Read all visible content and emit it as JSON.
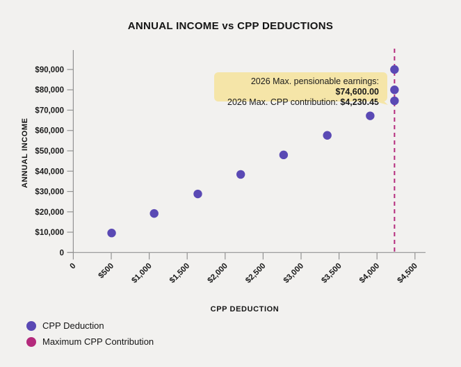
{
  "colors": {
    "background": "#f2f1ef",
    "point": "#5a49b4",
    "max_line": "#b42a7c",
    "annotation_bg": "#f5e5a8",
    "axis": "#929292",
    "text": "#1a1a1a"
  },
  "chart_data": {
    "type": "scatter",
    "title": "ANNUAL INCOME vs CPP DEDUCTIONS",
    "xlabel": "CPP DEDUCTION",
    "ylabel": "ANNUAL INCOME",
    "x_tick_values": [
      0,
      500,
      1000,
      1500,
      2000,
      2500,
      3000,
      3500,
      4000,
      4500
    ],
    "x_tick_labels": [
      "0",
      "$500",
      "$1,000",
      "$1,500",
      "$2,000",
      "$2,500",
      "$3,000",
      "$3,500",
      "$4,000",
      "$4,500"
    ],
    "y_tick_values": [
      0,
      10000,
      20000,
      30000,
      40000,
      50000,
      60000,
      70000,
      80000,
      90000
    ],
    "y_tick_labels": [
      "0",
      "$10,000",
      "$20,000",
      "$30,000",
      "$40,000",
      "$50,000",
      "$60,000",
      "$70,000",
      "$80,000",
      "$90,000"
    ],
    "xlim": [
      0,
      4640
    ],
    "ylim": [
      0,
      99500
    ],
    "grid": false,
    "legend_position": "bottom-left",
    "series": [
      {
        "name": "CPP Deduction",
        "color": "#5a49b4",
        "points": [
          {
            "cpp_deduction": 505,
            "annual_income": 9600
          },
          {
            "cpp_deduction": 1065,
            "annual_income": 19200
          },
          {
            "cpp_deduction": 1640,
            "annual_income": 28800
          },
          {
            "cpp_deduction": 2205,
            "annual_income": 38400
          },
          {
            "cpp_deduction": 2770,
            "annual_income": 48000
          },
          {
            "cpp_deduction": 3345,
            "annual_income": 57600
          },
          {
            "cpp_deduction": 3910,
            "annual_income": 67200
          },
          {
            "cpp_deduction": 4230.45,
            "annual_income": 74600
          },
          {
            "cpp_deduction": 4230.45,
            "annual_income": 80000
          },
          {
            "cpp_deduction": 4230.45,
            "annual_income": 90000
          }
        ]
      }
    ],
    "reference_line": {
      "name": "Maximum CPP Contribution",
      "x_value": 4230.45,
      "color": "#b42a7c",
      "style": "dashed-vertical"
    },
    "annotation": {
      "line1_label": "2026 Max. pensionable earnings: ",
      "line1_value": "$74,600.00",
      "line2_label": "2026 Max. CPP contribution: ",
      "line2_value": "$4,230.45"
    }
  },
  "legend": [
    {
      "label": "CPP Deduction",
      "color": "#5a49b4"
    },
    {
      "label": "Maximum CPP Contribution",
      "color": "#b42a7c"
    }
  ]
}
